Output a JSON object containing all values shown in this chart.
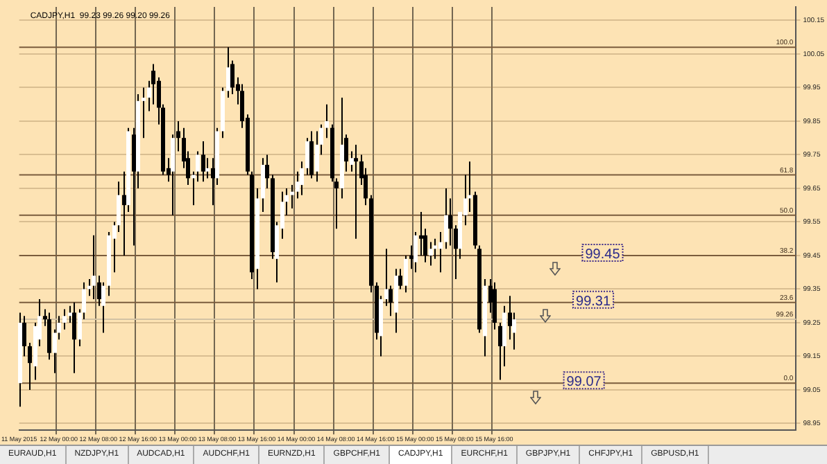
{
  "chart_data": {
    "type": "candlestick",
    "title": "CADJPY,H1  99.23 99.26 99.20 99.26",
    "categories": [
      "11 May 2015",
      null,
      null,
      null,
      null,
      null,
      null,
      null,
      "12 May 00:00",
      null,
      null,
      null,
      null,
      null,
      null,
      null,
      "12 May 08:00",
      null,
      null,
      null,
      null,
      null,
      null,
      null,
      "12 May 16:00",
      null,
      null,
      null,
      null,
      null,
      null,
      null,
      "13 May 00:00",
      null,
      null,
      null,
      null,
      null,
      null,
      null,
      "13 May 08:00",
      null,
      null,
      null,
      null,
      null,
      null,
      null,
      "13 May 16:00",
      null,
      null,
      null,
      null,
      null,
      null,
      null,
      "14 May 00:00",
      null,
      null,
      null,
      null,
      null,
      null,
      null,
      "14 May 08:00",
      null,
      null,
      null,
      null,
      null,
      null,
      null,
      "14 May 16:00",
      null,
      null,
      null,
      null,
      null,
      null,
      null,
      "15 May 00:00",
      null,
      null,
      null,
      null,
      null,
      null,
      null,
      "15 May 08:00",
      null,
      null,
      null,
      null,
      null,
      null,
      null,
      "15 May 16:00",
      null,
      null,
      null,
      null,
      null,
      null,
      null,
      null,
      null,
      null,
      null,
      null,
      null,
      null,
      null,
      null,
      null,
      null,
      null,
      null,
      null,
      null,
      null,
      null,
      null,
      null,
      null,
      null,
      null,
      null,
      null,
      null,
      null,
      null,
      null,
      null,
      null,
      null,
      null,
      null,
      null,
      null,
      null,
      null,
      null,
      null,
      null,
      null,
      null,
      null,
      null,
      null,
      null,
      null,
      null,
      null,
      null,
      null,
      null,
      null,
      null
    ],
    "ohlc": [
      [
        99.07,
        99.28,
        99.0,
        99.25
      ],
      [
        99.25,
        99.27,
        99.15,
        99.18
      ],
      [
        99.18,
        99.19,
        99.05,
        99.13
      ],
      [
        99.12,
        99.25,
        99.08,
        99.24
      ],
      [
        99.2,
        99.32,
        99.18,
        99.27
      ],
      [
        99.27,
        99.29,
        99.24,
        99.26
      ],
      [
        99.26,
        99.28,
        99.14,
        99.16
      ],
      [
        99.16,
        99.23,
        99.1,
        99.22
      ],
      [
        99.22,
        99.27,
        99.2,
        99.25
      ],
      [
        99.25,
        99.29,
        99.23,
        99.27
      ],
      [
        99.27,
        99.3,
        99.25,
        99.28
      ],
      [
        99.28,
        99.31,
        99.1,
        99.2
      ],
      [
        99.2,
        99.29,
        99.18,
        99.28
      ],
      [
        99.28,
        99.37,
        99.26,
        99.35
      ],
      [
        99.35,
        99.38,
        99.33,
        99.36
      ],
      [
        99.36,
        99.51,
        99.32,
        99.39
      ],
      [
        99.37,
        99.39,
        99.3,
        99.32
      ],
      [
        99.3,
        99.37,
        99.22,
        99.36
      ],
      [
        99.36,
        99.52,
        99.33,
        99.51
      ],
      [
        99.5,
        99.55,
        99.4,
        99.54
      ],
      [
        99.54,
        99.67,
        99.52,
        99.63
      ],
      [
        99.63,
        99.7,
        99.45,
        99.6
      ],
      [
        99.6,
        99.83,
        99.58,
        99.82
      ],
      [
        99.81,
        99.83,
        99.48,
        99.7
      ],
      [
        99.7,
        99.93,
        99.65,
        99.91
      ],
      [
        99.91,
        99.95,
        99.8,
        99.92
      ],
      [
        99.92,
        99.97,
        99.88,
        99.95
      ],
      [
        100.0,
        100.02,
        99.9,
        99.96
      ],
      [
        99.97,
        99.98,
        99.84,
        99.89
      ],
      [
        99.89,
        99.9,
        99.69,
        99.7
      ],
      [
        99.71,
        99.74,
        99.67,
        99.69
      ],
      [
        99.7,
        99.81,
        99.57,
        99.8
      ],
      [
        99.82,
        99.85,
        99.76,
        99.8
      ],
      [
        99.8,
        99.83,
        99.71,
        99.73
      ],
      [
        99.74,
        99.76,
        99.66,
        99.68
      ],
      [
        99.68,
        99.7,
        99.6,
        99.69
      ],
      [
        99.7,
        99.76,
        99.67,
        99.75
      ],
      [
        99.75,
        99.79,
        99.67,
        99.7
      ],
      [
        99.7,
        99.74,
        99.68,
        99.71
      ],
      [
        99.71,
        99.74,
        99.6,
        99.68
      ],
      [
        99.68,
        99.83,
        99.66,
        99.82
      ],
      [
        99.82,
        99.95,
        99.8,
        99.94
      ],
      [
        99.94,
        100.07,
        99.92,
        100.01
      ],
      [
        100.02,
        100.03,
        99.93,
        99.95
      ],
      [
        99.96,
        99.98,
        99.9,
        99.94
      ],
      [
        99.94,
        99.96,
        99.83,
        99.85
      ],
      [
        99.86,
        99.87,
        99.69,
        99.7
      ],
      [
        99.69,
        99.7,
        99.38,
        99.4
      ],
      [
        99.41,
        99.65,
        99.35,
        99.62
      ],
      [
        99.62,
        99.74,
        99.58,
        99.72
      ],
      [
        99.72,
        99.75,
        99.65,
        99.68
      ],
      [
        99.68,
        99.69,
        99.44,
        99.46
      ],
      [
        99.44,
        99.55,
        99.37,
        99.54
      ],
      [
        99.53,
        99.64,
        99.5,
        99.61
      ],
      [
        99.61,
        99.65,
        99.57,
        99.63
      ],
      [
        99.63,
        99.66,
        99.59,
        99.64
      ],
      [
        99.64,
        99.7,
        99.62,
        99.67
      ],
      [
        99.66,
        99.73,
        99.63,
        99.71
      ],
      [
        99.71,
        99.8,
        99.69,
        99.79
      ],
      [
        99.79,
        99.82,
        99.68,
        99.69
      ],
      [
        99.7,
        99.82,
        99.67,
        99.78
      ],
      [
        99.78,
        99.84,
        99.75,
        99.83
      ],
      [
        99.83,
        99.9,
        99.8,
        99.85
      ],
      [
        99.83,
        99.84,
        99.67,
        99.68
      ],
      [
        99.67,
        99.68,
        99.53,
        99.65
      ],
      [
        99.65,
        99.92,
        99.62,
        99.78
      ],
      [
        99.8,
        99.81,
        99.7,
        99.73
      ],
      [
        99.72,
        99.76,
        99.7,
        99.74
      ],
      [
        99.74,
        99.78,
        99.5,
        99.73
      ],
      [
        99.73,
        99.75,
        99.66,
        99.68
      ],
      [
        99.69,
        99.71,
        99.6,
        99.62
      ],
      [
        99.62,
        99.63,
        99.34,
        99.36
      ],
      [
        99.36,
        99.37,
        99.2,
        99.22
      ],
      [
        99.21,
        99.33,
        99.15,
        99.32
      ],
      [
        99.32,
        99.47,
        99.3,
        99.35
      ],
      [
        99.35,
        99.36,
        99.27,
        99.31
      ],
      [
        99.28,
        99.41,
        99.22,
        99.39
      ],
      [
        99.39,
        99.41,
        99.35,
        99.36
      ],
      [
        99.36,
        99.45,
        99.34,
        99.44
      ],
      [
        99.45,
        99.48,
        99.41,
        99.44
      ],
      [
        99.43,
        99.52,
        99.4,
        99.51
      ],
      [
        99.51,
        99.58,
        99.45,
        99.5
      ],
      [
        99.51,
        99.53,
        99.43,
        99.45
      ],
      [
        99.45,
        99.49,
        99.42,
        99.47
      ],
      [
        99.47,
        99.5,
        99.44,
        99.48
      ],
      [
        99.47,
        99.52,
        99.4,
        99.49
      ],
      [
        99.49,
        99.65,
        99.47,
        99.57
      ],
      [
        99.57,
        99.62,
        99.48,
        99.53
      ],
      [
        99.53,
        99.54,
        99.38,
        99.47
      ],
      [
        99.47,
        99.58,
        99.44,
        99.58
      ],
      [
        99.57,
        99.69,
        99.54,
        99.62
      ],
      [
        99.62,
        99.73,
        99.58,
        99.63
      ],
      [
        99.63,
        99.64,
        99.47,
        99.48
      ],
      [
        99.47,
        99.48,
        99.22,
        99.23
      ],
      [
        99.21,
        99.38,
        99.15,
        99.36
      ],
      [
        99.36,
        99.38,
        99.28,
        99.31
      ],
      [
        99.35,
        99.37,
        99.23,
        99.25
      ],
      [
        99.24,
        99.25,
        99.08,
        99.18
      ],
      [
        99.18,
        99.3,
        99.12,
        99.28
      ],
      [
        99.28,
        99.33,
        99.2,
        99.24
      ],
      [
        99.22,
        99.28,
        99.17,
        99.26
      ],
      null,
      null,
      null,
      null,
      null,
      null,
      null,
      null,
      null,
      null,
      null,
      null,
      null,
      null,
      null,
      null,
      null,
      null,
      null,
      null,
      null,
      null,
      null,
      null,
      null,
      null,
      null,
      null,
      null,
      null,
      null,
      null,
      null,
      null,
      null,
      null,
      null,
      null,
      null,
      null,
      null,
      null,
      null,
      null,
      null,
      null,
      null,
      null,
      null,
      null,
      null,
      null,
      null,
      null,
      null,
      null,
      null
    ],
    "ylim": [
      98.93,
      100.19
    ],
    "yticks": [
      98.95,
      99.05,
      99.15,
      99.25,
      99.35,
      99.45,
      99.55,
      99.65,
      99.75,
      99.85,
      99.95,
      100.05,
      100.15
    ],
    "grid": true,
    "ref_lines": [
      {
        "axis": "y",
        "value": 100.07,
        "color": "#7a5c3c"
      },
      {
        "axis": "y",
        "value": 99.69,
        "color": "#7a5c3c"
      },
      {
        "axis": "y",
        "value": 99.57,
        "color": "#7a5c3c"
      },
      {
        "axis": "y",
        "value": 99.45,
        "color": "#7a5c3c"
      },
      {
        "axis": "y",
        "value": 99.31,
        "color": "#7a5c3c"
      },
      {
        "axis": "y",
        "value": 99.07,
        "color": "#7a5c3c"
      },
      {
        "axis": "y",
        "value": 99.26,
        "label": "99.26",
        "color": "#d2c2a4"
      }
    ],
    "annotations": [
      {
        "text": "99.45",
        "y": 99.45
      },
      {
        "text": "99.31",
        "y": 99.31
      },
      {
        "text": "99.07",
        "y": 99.07
      },
      {
        "text": "100.0",
        "y": 100.07
      },
      {
        "text": "61.8",
        "y": 99.69
      },
      {
        "text": "50.0",
        "y": 99.57
      },
      {
        "text": "38.2",
        "y": 99.45
      },
      {
        "text": "23.6",
        "y": 99.31
      },
      {
        "text": "0.0",
        "y": 99.07
      },
      "EURAUD,H1",
      "NZDJPY,H1",
      "AUDCAD,H1",
      "AUDCHF,H1",
      "EURNZD,H1",
      "GBPCHF,H1",
      "CADJPY,H1",
      "EURCHF,H1",
      "GBPJPY,H1",
      "CHFJPY,H1",
      "GBPUSD,H1"
    ]
  }
}
